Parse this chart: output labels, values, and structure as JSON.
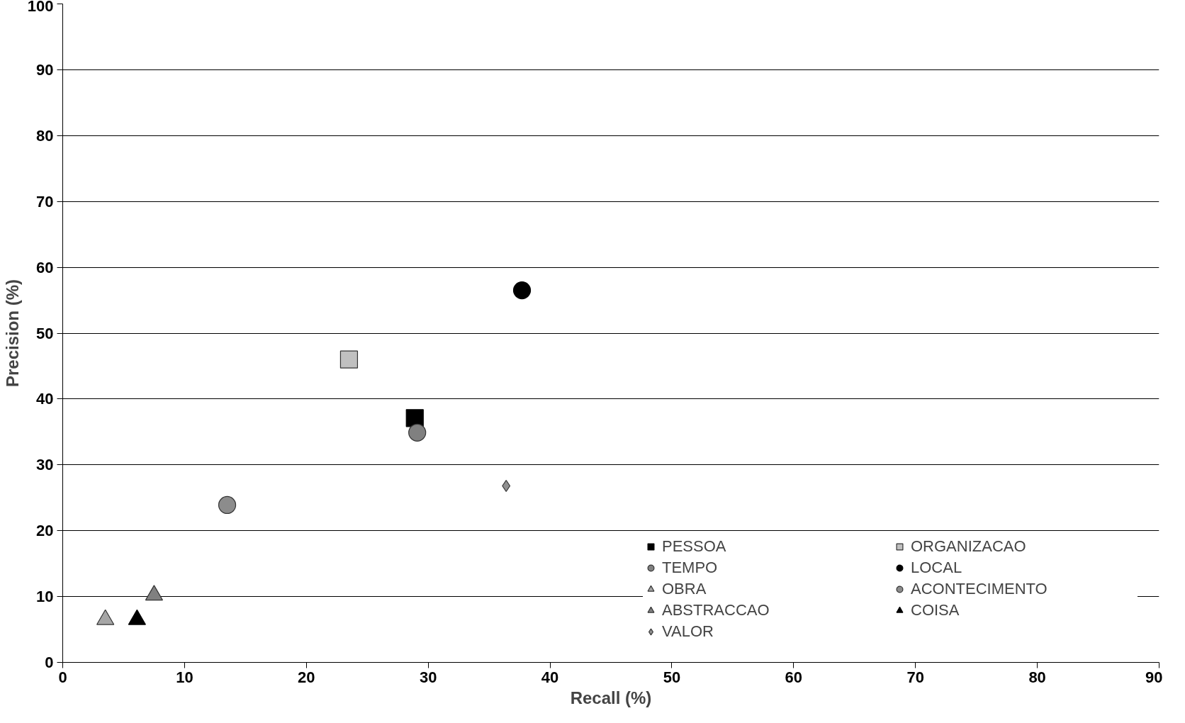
{
  "chart_data": {
    "type": "scatter",
    "xlabel": "Recall (%)",
    "ylabel": "Precision (%)",
    "xlim": [
      0,
      90
    ],
    "ylim": [
      0,
      100
    ],
    "xticks": [
      0,
      10,
      20,
      30,
      40,
      50,
      60,
      70,
      80,
      90
    ],
    "yticks": [
      0,
      10,
      20,
      30,
      40,
      50,
      60,
      70,
      80,
      90,
      100
    ],
    "grid": "y",
    "legend": "bottom right",
    "series": [
      {
        "name": "PESSOA",
        "color": "#000000",
        "marker": "square",
        "x": [
          28.9
        ],
        "values": [
          37.1
        ]
      },
      {
        "name": "ORGANIZACAO",
        "color": "#c0c0c0",
        "marker": "square",
        "x": [
          23.5
        ],
        "values": [
          46.0
        ]
      },
      {
        "name": "TEMPO",
        "color": "#808080",
        "marker": "circle",
        "x": [
          29.1
        ],
        "values": [
          34.9
        ]
      },
      {
        "name": "LOCAL",
        "color": "#000000",
        "marker": "circle",
        "x": [
          37.7
        ],
        "values": [
          56.5
        ]
      },
      {
        "name": "OBRA",
        "color": "#a6a6a6",
        "marker": "triangle",
        "x": [
          3.5
        ],
        "values": [
          6.5
        ]
      },
      {
        "name": "ACONTECIMENTO",
        "color": "#8c8c8c",
        "marker": "circle",
        "x": [
          13.5
        ],
        "values": [
          23.9
        ]
      },
      {
        "name": "ABSTRACCAO",
        "color": "#808080",
        "marker": "triangle",
        "x": [
          7.5
        ],
        "values": [
          10.2
        ]
      },
      {
        "name": "COISA",
        "color": "#000000",
        "marker": "triangle",
        "x": [
          6.1
        ],
        "values": [
          6.5
        ]
      },
      {
        "name": "VALOR",
        "color": "#909090",
        "marker": "diamond",
        "x": [
          36.4
        ],
        "values": [
          26.8
        ]
      }
    ]
  }
}
